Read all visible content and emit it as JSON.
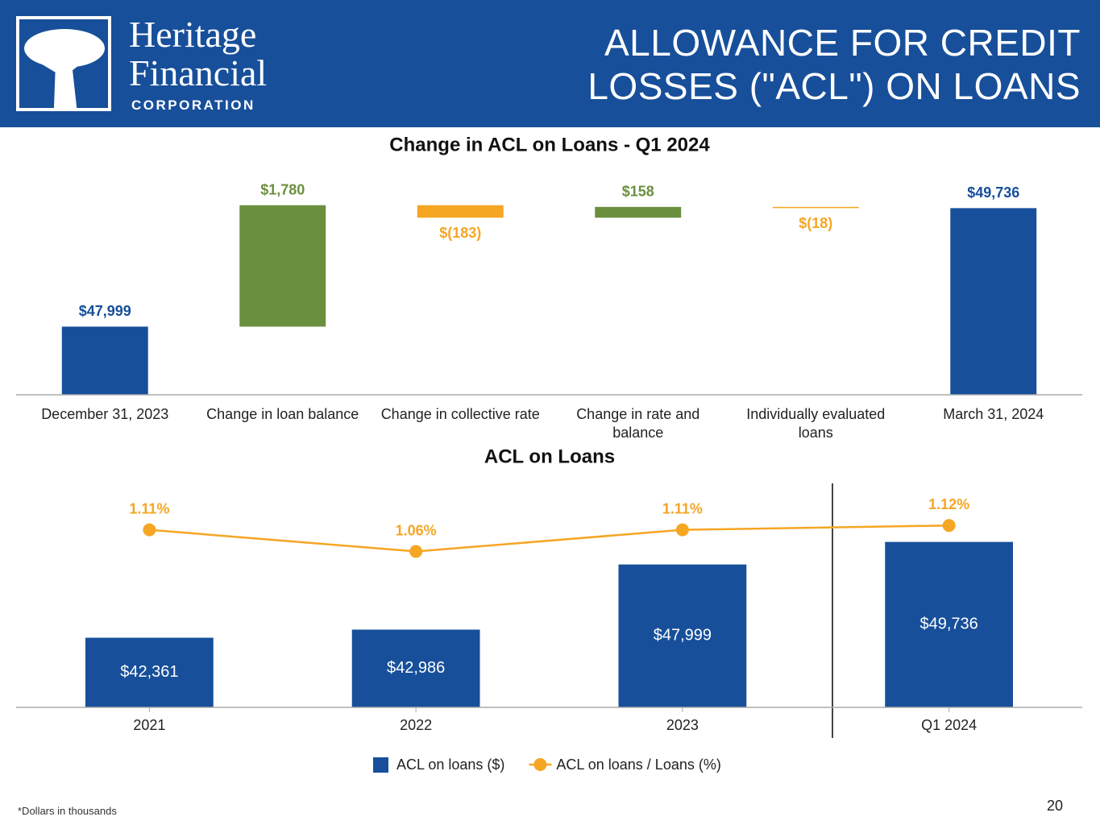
{
  "header": {
    "logo_line1": "Heritage",
    "logo_line2": "Financial",
    "logo_line3": "CORPORATION",
    "title_lines": [
      "ALLOWANCE FOR CREDIT",
      "LOSSES (\"ACL\") ON LOANS"
    ]
  },
  "chart_data": [
    {
      "type": "waterfall",
      "title": "Change in ACL on Loans - Q1 2024",
      "categories": [
        "December 31, 2023",
        "Change in loan balance",
        "Change in collective rate",
        "Change in rate and balance",
        "Individually evaluated loans",
        "March 31, 2024"
      ],
      "values": [
        47999,
        1780,
        -183,
        158,
        -18,
        49736
      ],
      "value_labels": [
        "$47,999",
        "$1,780",
        "$(183)",
        "$158",
        "$(18)",
        "$49,736"
      ],
      "is_total": [
        true,
        false,
        false,
        false,
        false,
        true
      ],
      "colors": {
        "total": "#174f9a",
        "increase": "#6a8f3e",
        "decrease": "#f5a623"
      },
      "ylim": [
        47000,
        50000
      ]
    },
    {
      "type": "bar_line",
      "title": "ACL on Loans",
      "categories": [
        "2021",
        "2022",
        "2023",
        "Q1 2024"
      ],
      "series": [
        {
          "name": "ACL on loans ($)",
          "color": "#174f9a",
          "kind": "bar",
          "values": [
            42361,
            42986,
            47999,
            49736
          ],
          "value_labels": [
            "$42,361",
            "$42,986",
            "$47,999",
            "$49,736"
          ]
        },
        {
          "name": "ACL on loans / Loans (%)",
          "color": "#f5a623",
          "kind": "line",
          "axis": "y2",
          "values": [
            1.11,
            1.06,
            1.11,
            1.12
          ],
          "value_labels": [
            "1.11%",
            "1.06%",
            "1.11%",
            "1.12%"
          ]
        }
      ],
      "ylim": [
        37000,
        53000
      ],
      "y2lim": [
        0.7,
        1.18
      ]
    }
  ],
  "footnote": "*Dollars in thousands",
  "page_number": "20"
}
